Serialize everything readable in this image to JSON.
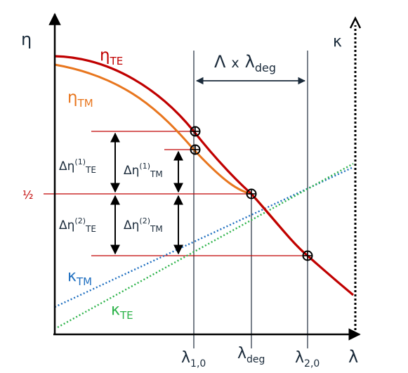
{
  "axes": {
    "y_symbol": "η",
    "x_symbol": "λ",
    "right_symbol": "κ",
    "half_label": "½"
  },
  "curves": {
    "eta_te": {
      "base": "η",
      "sub": "TE",
      "color": "#c00000"
    },
    "eta_tm": {
      "base": "η",
      "sub": "TM",
      "color": "#e8761e"
    },
    "kappa_tm": {
      "base": "κ",
      "sub": "TM",
      "color": "#1f6fc0"
    },
    "kappa_te": {
      "base": "κ",
      "sub": "TE",
      "color": "#2db34a"
    }
  },
  "annotations": {
    "bandwidth": {
      "lambda": "Λ",
      "times": "x",
      "base": "λ",
      "sub": "deg"
    },
    "d_eta_1_te": {
      "base": "Δη",
      "sup": "(1)",
      "sub": "TE"
    },
    "d_eta_1_tm": {
      "base": "Δη",
      "sup": "(1)",
      "sub": "TM"
    },
    "d_eta_2_te": {
      "base": "Δη",
      "sup": "(2)",
      "sub": "TE"
    },
    "d_eta_2_tm": {
      "base": "Δη",
      "sup": "(2)",
      "sub": "TM"
    }
  },
  "x_markers": [
    {
      "base": "λ",
      "sub": "1,0"
    },
    {
      "base": "λ",
      "sub": "deg"
    },
    {
      "base": "λ",
      "sub": "2,0"
    }
  ],
  "colors": {
    "axis": "#000000",
    "guide": "#2f3b4a",
    "hline": "#c00000"
  }
}
